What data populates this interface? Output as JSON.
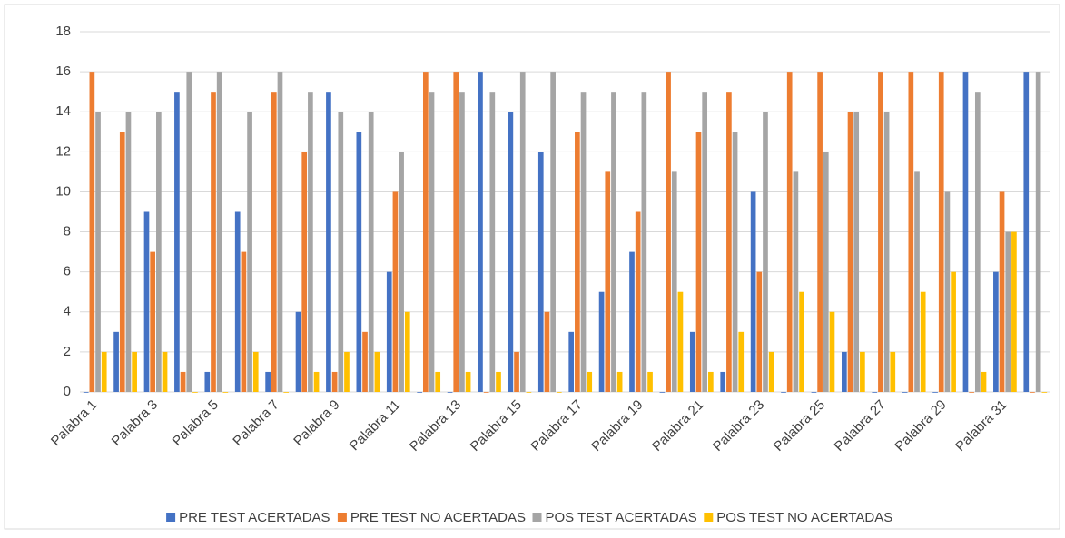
{
  "chart_data": {
    "type": "bar",
    "categories": [
      "Palabra 1",
      null,
      "Palabra 3",
      null,
      "Palabra 5",
      null,
      "Palabra 7",
      null,
      "Palabra 9",
      null,
      "Palabra 11",
      null,
      "Palabra 13",
      null,
      "Palabra 15",
      null,
      "Palabra 17",
      null,
      "Palabra 19",
      null,
      "Palabra 21",
      null,
      "Palabra 23",
      null,
      "Palabra 25",
      null,
      "Palabra 27",
      null,
      "Palabra 29",
      null,
      "Palabra 31",
      null
    ],
    "series": [
      {
        "name": "PRE TEST ACERTADAS",
        "color": "#4472c4",
        "values": [
          0,
          3,
          9,
          15,
          1,
          9,
          1,
          4,
          15,
          13,
          6,
          0,
          0,
          16,
          14,
          12,
          3,
          5,
          7,
          0,
          3,
          1,
          10,
          0,
          0,
          2,
          0,
          0,
          0,
          16,
          6,
          16
        ]
      },
      {
        "name": "PRE TEST NO ACERTADAS",
        "color": "#ed7d31",
        "values": [
          16,
          13,
          7,
          1,
          15,
          7,
          15,
          12,
          1,
          3,
          10,
          16,
          16,
          0,
          2,
          4,
          13,
          11,
          9,
          16,
          13,
          15,
          6,
          16,
          16,
          14,
          16,
          16,
          16,
          0,
          10,
          0
        ]
      },
      {
        "name": "POS TEST ACERTADAS",
        "color": "#a5a5a5",
        "values": [
          14,
          14,
          14,
          16,
          16,
          14,
          16,
          15,
          14,
          14,
          12,
          15,
          15,
          15,
          16,
          16,
          15,
          15,
          15,
          11,
          15,
          13,
          14,
          11,
          12,
          14,
          14,
          11,
          10,
          15,
          8,
          16
        ]
      },
      {
        "name": "POS TEST NO ACERTADAS",
        "color": "#ffc000",
        "values": [
          2,
          2,
          2,
          0,
          0,
          2,
          0,
          1,
          2,
          2,
          4,
          1,
          1,
          1,
          0,
          0,
          1,
          1,
          1,
          5,
          1,
          3,
          2,
          5,
          4,
          2,
          2,
          5,
          6,
          1,
          8,
          0
        ]
      }
    ],
    "ylim": [
      0,
      18
    ],
    "yticks": [
      0,
      2,
      4,
      6,
      8,
      10,
      12,
      14,
      16,
      18
    ],
    "grid": true,
    "legend": "bottom"
  }
}
